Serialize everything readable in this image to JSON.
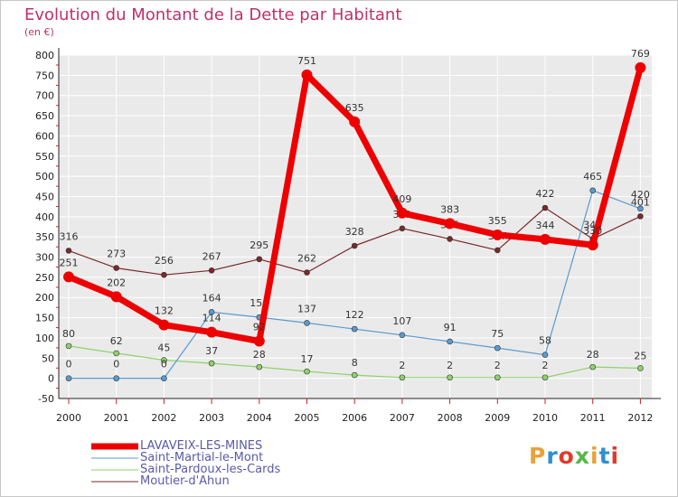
{
  "title": "Evolution du Montant de la Dette par Habitant",
  "subtitle": "(en €)",
  "logo": {
    "text": "Proxiti",
    "colors": [
      "#e8a23a",
      "#2f8fd0",
      "#e23a2a",
      "#56b848",
      "#e8a23a",
      "#2f8fd0",
      "#e23a2a"
    ]
  },
  "chart_data": {
    "type": "line",
    "x": [
      "2000",
      "2001",
      "2002",
      "2003",
      "2004",
      "2005",
      "2006",
      "2007",
      "2008",
      "2009",
      "2010",
      "2011",
      "2012"
    ],
    "ylim": [
      -50,
      800
    ],
    "yticks": [
      -50,
      0,
      50,
      100,
      150,
      200,
      250,
      300,
      350,
      400,
      450,
      500,
      550,
      600,
      650,
      700,
      750,
      800
    ],
    "grid": true,
    "legend_position": "bottom",
    "series": [
      {
        "name": "Moutier-d'Ahun",
        "color": "#7a2a2a",
        "width": 1.2,
        "values": [
          316,
          273,
          256,
          267,
          295,
          262,
          328,
          371,
          345,
          317,
          422,
          345,
          401
        ],
        "labels": [
          "316",
          "273",
          "256",
          "267",
          "295",
          "262",
          "328",
          "371",
          "345",
          "317",
          "422",
          "345",
          "401"
        ]
      },
      {
        "name": "Saint-Pardoux-les-Cards",
        "color": "#8ed26a",
        "width": 1.2,
        "values": [
          80,
          62,
          45,
          37,
          28,
          17,
          8,
          2,
          2,
          2,
          2,
          28,
          25
        ],
        "labels": [
          "80",
          "62",
          "45",
          "37",
          "28",
          "17",
          "8",
          "2",
          "2",
          "2",
          "2",
          "28",
          "25"
        ]
      },
      {
        "name": "Saint-Martial-le-Mont",
        "color": "#5b9bd0",
        "width": 1.2,
        "values": [
          0,
          0,
          0,
          164,
          151,
          137,
          122,
          107,
          91,
          75,
          58,
          465,
          420
        ],
        "labels": [
          "0",
          "0",
          "0",
          "164",
          "151",
          "137",
          "122",
          "107",
          "91",
          "75",
          "58",
          "465",
          "420"
        ]
      },
      {
        "name": "LAVAVEIX-LES-MINES",
        "color": "#ee0000",
        "width": 7,
        "values": [
          251,
          202,
          132,
          114,
          92,
          751,
          635,
          409,
          383,
          355,
          344,
          330,
          769
        ],
        "labels": [
          "251",
          "202",
          "132",
          "114",
          "92",
          "751",
          "635",
          "409",
          "383",
          "355",
          "344",
          "330",
          "769"
        ]
      }
    ]
  },
  "legend": [
    {
      "name": "LAVAVEIX-LES-MINES",
      "color": "#ee0000",
      "thickness": 7
    },
    {
      "name": "Saint-Martial-le-Mont",
      "color": "#5b9bd0",
      "thickness": 1
    },
    {
      "name": "Saint-Pardoux-les-Cards",
      "color": "#8ed26a",
      "thickness": 1
    },
    {
      "name": "Moutier-d'Ahun",
      "color": "#7a2a2a",
      "thickness": 1
    }
  ]
}
